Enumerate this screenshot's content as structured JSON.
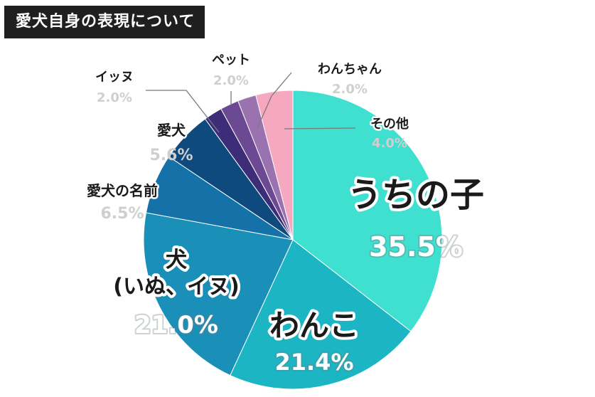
{
  "header": {
    "title": "愛犬自身の表現について"
  },
  "colors": {
    "background": "#ffffff",
    "title_bg": "#1f1f1f",
    "slices": [
      "#3fe0d0",
      "#1bb5c4",
      "#1a8fb8",
      "#1472a8",
      "#0f4a7f",
      "#3d2c78",
      "#6b4a93",
      "#9a72b0",
      "#c99ac6",
      "#f5a8c0"
    ]
  },
  "chart_data": {
    "type": "pie",
    "title": "愛犬自身の表現について",
    "start": "12 o'clock",
    "direction": "clockwise",
    "slices": [
      {
        "label": "うちの子",
        "value": 35.5,
        "pct_text": "35.5%"
      },
      {
        "label": "わんこ",
        "value": 21.4,
        "pct_text": "21.4%"
      },
      {
        "label": "犬\n(いぬ、イヌ)",
        "value": 21.0,
        "pct_text": "21.0%"
      },
      {
        "label": "愛犬の名前",
        "value": 6.5,
        "pct_text": "6.5%"
      },
      {
        "label": "愛犬",
        "value": 5.6,
        "pct_text": "5.6%"
      },
      {
        "label": "イッヌ",
        "value": 2.0,
        "pct_text": "2.0%"
      },
      {
        "label": "ペット",
        "value": 2.0,
        "pct_text": "2.0%"
      },
      {
        "label": "わんちゃん",
        "value": 2.0,
        "pct_text": "2.0%"
      },
      {
        "label": "その他",
        "value": 4.0,
        "pct_text": "4.0%"
      }
    ]
  }
}
